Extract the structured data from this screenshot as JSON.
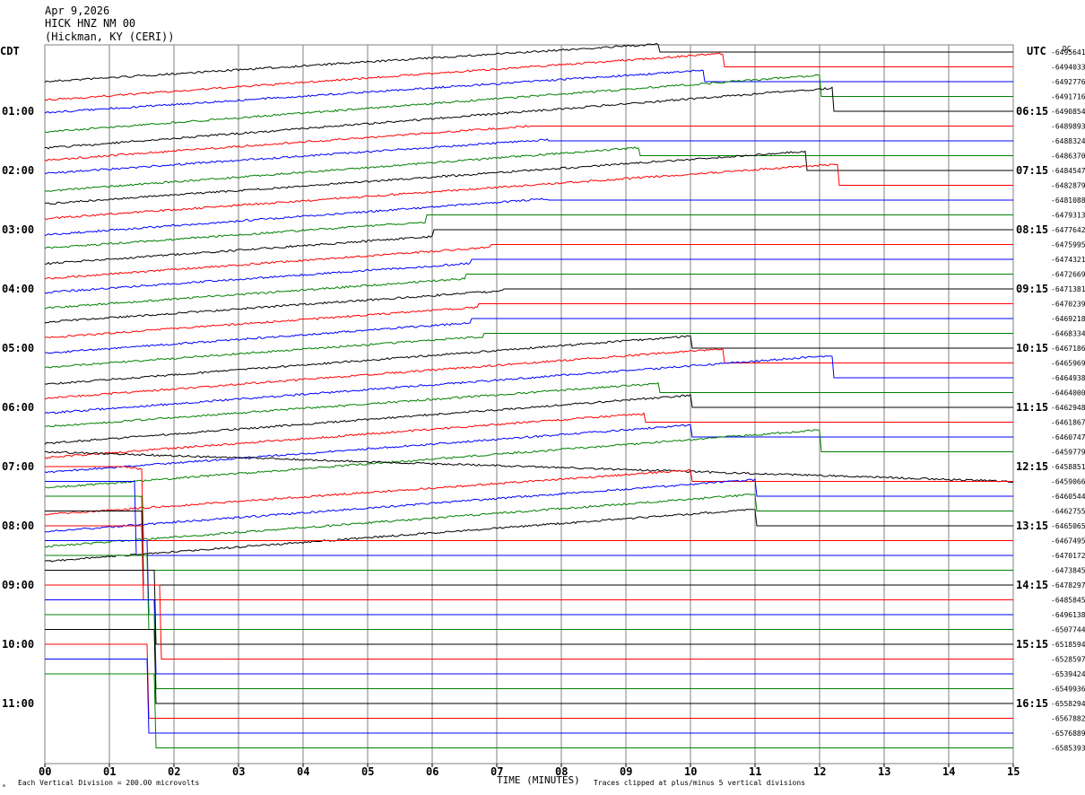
{
  "header": {
    "date": "Apr 9,2026",
    "channel": "HICK HNZ NM 00",
    "location": "(Hickman, KY (CERI))"
  },
  "left_timezone": "CDT",
  "right_timezone": "UTC",
  "right_corner_label": "DC",
  "footer": {
    "scale_note": "Each Vertical Division =  200.00 microvolts",
    "xlabel": "TIME (MINUTES)",
    "clip_note": "Traces clipped at plus/minus 5 vertical divisions",
    "corner_mark": "ₘ"
  },
  "colors": {
    "cycle": [
      "#000000",
      "#ff0000",
      "#0000ff",
      "#008000"
    ],
    "grid": "#808080"
  },
  "chart_data": {
    "type": "line",
    "title": "HICK HNZ NM 00",
    "xlabel": "TIME (MINUTES)",
    "xlim": [
      0,
      15
    ],
    "x_ticks": [
      "00",
      "01",
      "02",
      "03",
      "04",
      "05",
      "06",
      "07",
      "08",
      "09",
      "10",
      "11",
      "12",
      "13",
      "14",
      "15"
    ],
    "grid": true,
    "rows_per_hour": 4,
    "left_hour_labels": [
      "01:00",
      "02:00",
      "03:00",
      "04:00",
      "05:00",
      "06:00",
      "07:00",
      "08:00",
      "09:00",
      "10:00",
      "11:00"
    ],
    "right_hour_labels": [
      "06:15",
      "07:15",
      "08:15",
      "09:15",
      "10:15",
      "11:15",
      "12:15",
      "13:15",
      "14:15",
      "15:15",
      "16:15"
    ],
    "dc_offsets": [
      "-6495641",
      "-6494033",
      "-6492776",
      "-6491716",
      "-6490854",
      "-6489893",
      "-6488324",
      "-6486370",
      "-6484547",
      "-6482879",
      "-6481088",
      "-6479313",
      "-6477642",
      "-6475995",
      "-6474321",
      "-6472669",
      "-6471381",
      "-6470239",
      "-6469218",
      "-6468334",
      "-6467186",
      "-6465969",
      "-6464938",
      "-6464000",
      "-6462948",
      "-6461867",
      "-6460747",
      "-6459779",
      "-6458851",
      "-6459066",
      "-6460544",
      "-6462755",
      "-6465065",
      "-6467495",
      "-6470172",
      "-6473845",
      "-6478297",
      "-6485845",
      "-6496138",
      "-6507744",
      "-6518594",
      "-6528597",
      "-6539424",
      "-6549936",
      "-6558294",
      "-6567882",
      "-6576889",
      "-6585393"
    ],
    "trace_end_minutes": [
      15,
      15,
      15,
      15,
      15,
      15,
      15,
      15,
      15,
      15,
      15,
      15,
      15,
      15,
      15,
      15,
      15,
      15,
      15,
      15,
      15,
      15,
      15,
      15,
      15,
      15,
      15,
      15,
      15,
      15,
      15,
      15,
      15,
      15,
      15,
      15,
      15,
      15,
      15,
      15,
      15,
      15,
      15,
      15,
      15,
      15,
      15,
      15
    ],
    "trace_clipped_after_minute": [
      9.5,
      10.5,
      10.2,
      12,
      12.2,
      7.5,
      7.8,
      9.2,
      11.8,
      12.3,
      7.8,
      5.9,
      6.0,
      6.9,
      6.6,
      6.5,
      7.1,
      6.7,
      6.6,
      6.8,
      10.0,
      10.5,
      12.2,
      9.5,
      10.0,
      9.3,
      10.0,
      12.0,
      15,
      10.0,
      11.0,
      11.0,
      11.0,
      1.5,
      1.4,
      1.5,
      1.5,
      1.5,
      1.6,
      1.6,
      1.7,
      1.8,
      1.7,
      1.7,
      1.7,
      1.6,
      1.6,
      1.7
    ],
    "trace_slope_divisions_per_row": [
      -4.0,
      -4.5,
      -4.2,
      -4.8,
      -5.0,
      -4.6,
      -4.4,
      -4.8,
      -4.5,
      -4.5,
      -4.7,
      -4.5,
      -4.6,
      -4.6,
      -4.5,
      -4.6,
      -4.5,
      -4.6,
      -4.7,
      -4.6,
      -4.9,
      -4.8,
      -4.8,
      -4.6,
      -4.9,
      -4.8,
      -4.8,
      -4.9,
      2.0,
      -4.5,
      -4.8,
      -4.8,
      -4.8,
      12.0,
      12.5,
      12.5,
      13.0,
      13.5,
      13.5,
      14.0,
      14.0,
      14.0,
      14.0,
      14.0,
      14.0,
      14.0,
      14.0,
      14.0
    ]
  }
}
